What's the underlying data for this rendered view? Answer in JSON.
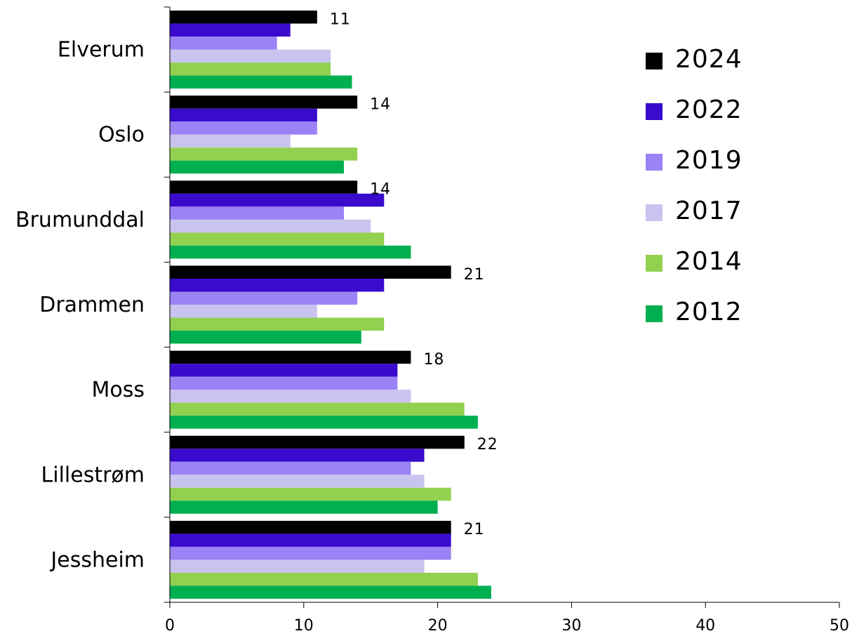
{
  "chart_data": {
    "type": "bar",
    "orientation": "horizontal",
    "categories": [
      "Elverum",
      "Oslo",
      "Brumunddal",
      "Drammen",
      "Moss",
      "Lillestrøm",
      "Jessheim"
    ],
    "series": [
      {
        "name": "2024",
        "color": "#000000",
        "values": [
          11,
          14,
          14,
          21,
          18,
          22,
          21
        ]
      },
      {
        "name": "2022",
        "color": "#3a0bcc",
        "values": [
          9,
          11,
          16,
          16,
          17,
          19,
          21
        ]
      },
      {
        "name": "2019",
        "color": "#9b82f5",
        "values": [
          8,
          11,
          13,
          14,
          17,
          18,
          21
        ]
      },
      {
        "name": "2017",
        "color": "#c9c3ef",
        "values": [
          12,
          9,
          15,
          11,
          18,
          19,
          19
        ]
      },
      {
        "name": "2014",
        "color": "#92d050",
        "values": [
          12,
          14,
          16,
          16,
          22,
          21,
          23
        ]
      },
      {
        "name": "2012",
        "color": "#00b050",
        "values": [
          13.6,
          13,
          18,
          14.3,
          23,
          20,
          24
        ]
      }
    ],
    "data_labels": {
      "series": "2024",
      "values": [
        11,
        14,
        14,
        21,
        18,
        22,
        21
      ]
    },
    "xlim": [
      0,
      50
    ],
    "xticks": [
      0,
      10,
      20,
      30,
      40,
      50
    ],
    "grid": false,
    "legend_position": "top-right",
    "title": "",
    "xlabel": "",
    "ylabel": ""
  }
}
